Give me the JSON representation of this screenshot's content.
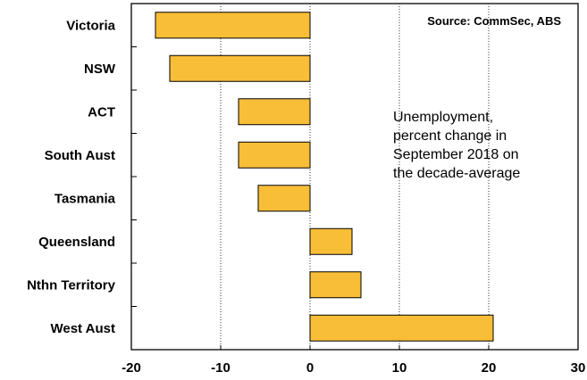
{
  "chart_data": {
    "type": "bar",
    "orientation": "horizontal",
    "categories": [
      "Victoria",
      "NSW",
      "ACT",
      "South Aust",
      "Tasmania",
      "Queensland",
      "Nthn Territory",
      "West Aust"
    ],
    "values": [
      -17.3,
      -15.7,
      -8.0,
      -8.0,
      -5.8,
      4.7,
      5.7,
      20.5
    ],
    "xlim": [
      -20,
      30
    ],
    "xticks": [
      "-20",
      "-10",
      "0",
      "10",
      "20",
      "30"
    ],
    "grid": "vertical dotted lines",
    "bar_color": "#F9BE37",
    "bar_edge_color": "#000000",
    "source": "Source: CommSec, ABS",
    "annotation": [
      "Unemployment,",
      "percent change in",
      "September 2018 on",
      "the decade-average"
    ]
  }
}
